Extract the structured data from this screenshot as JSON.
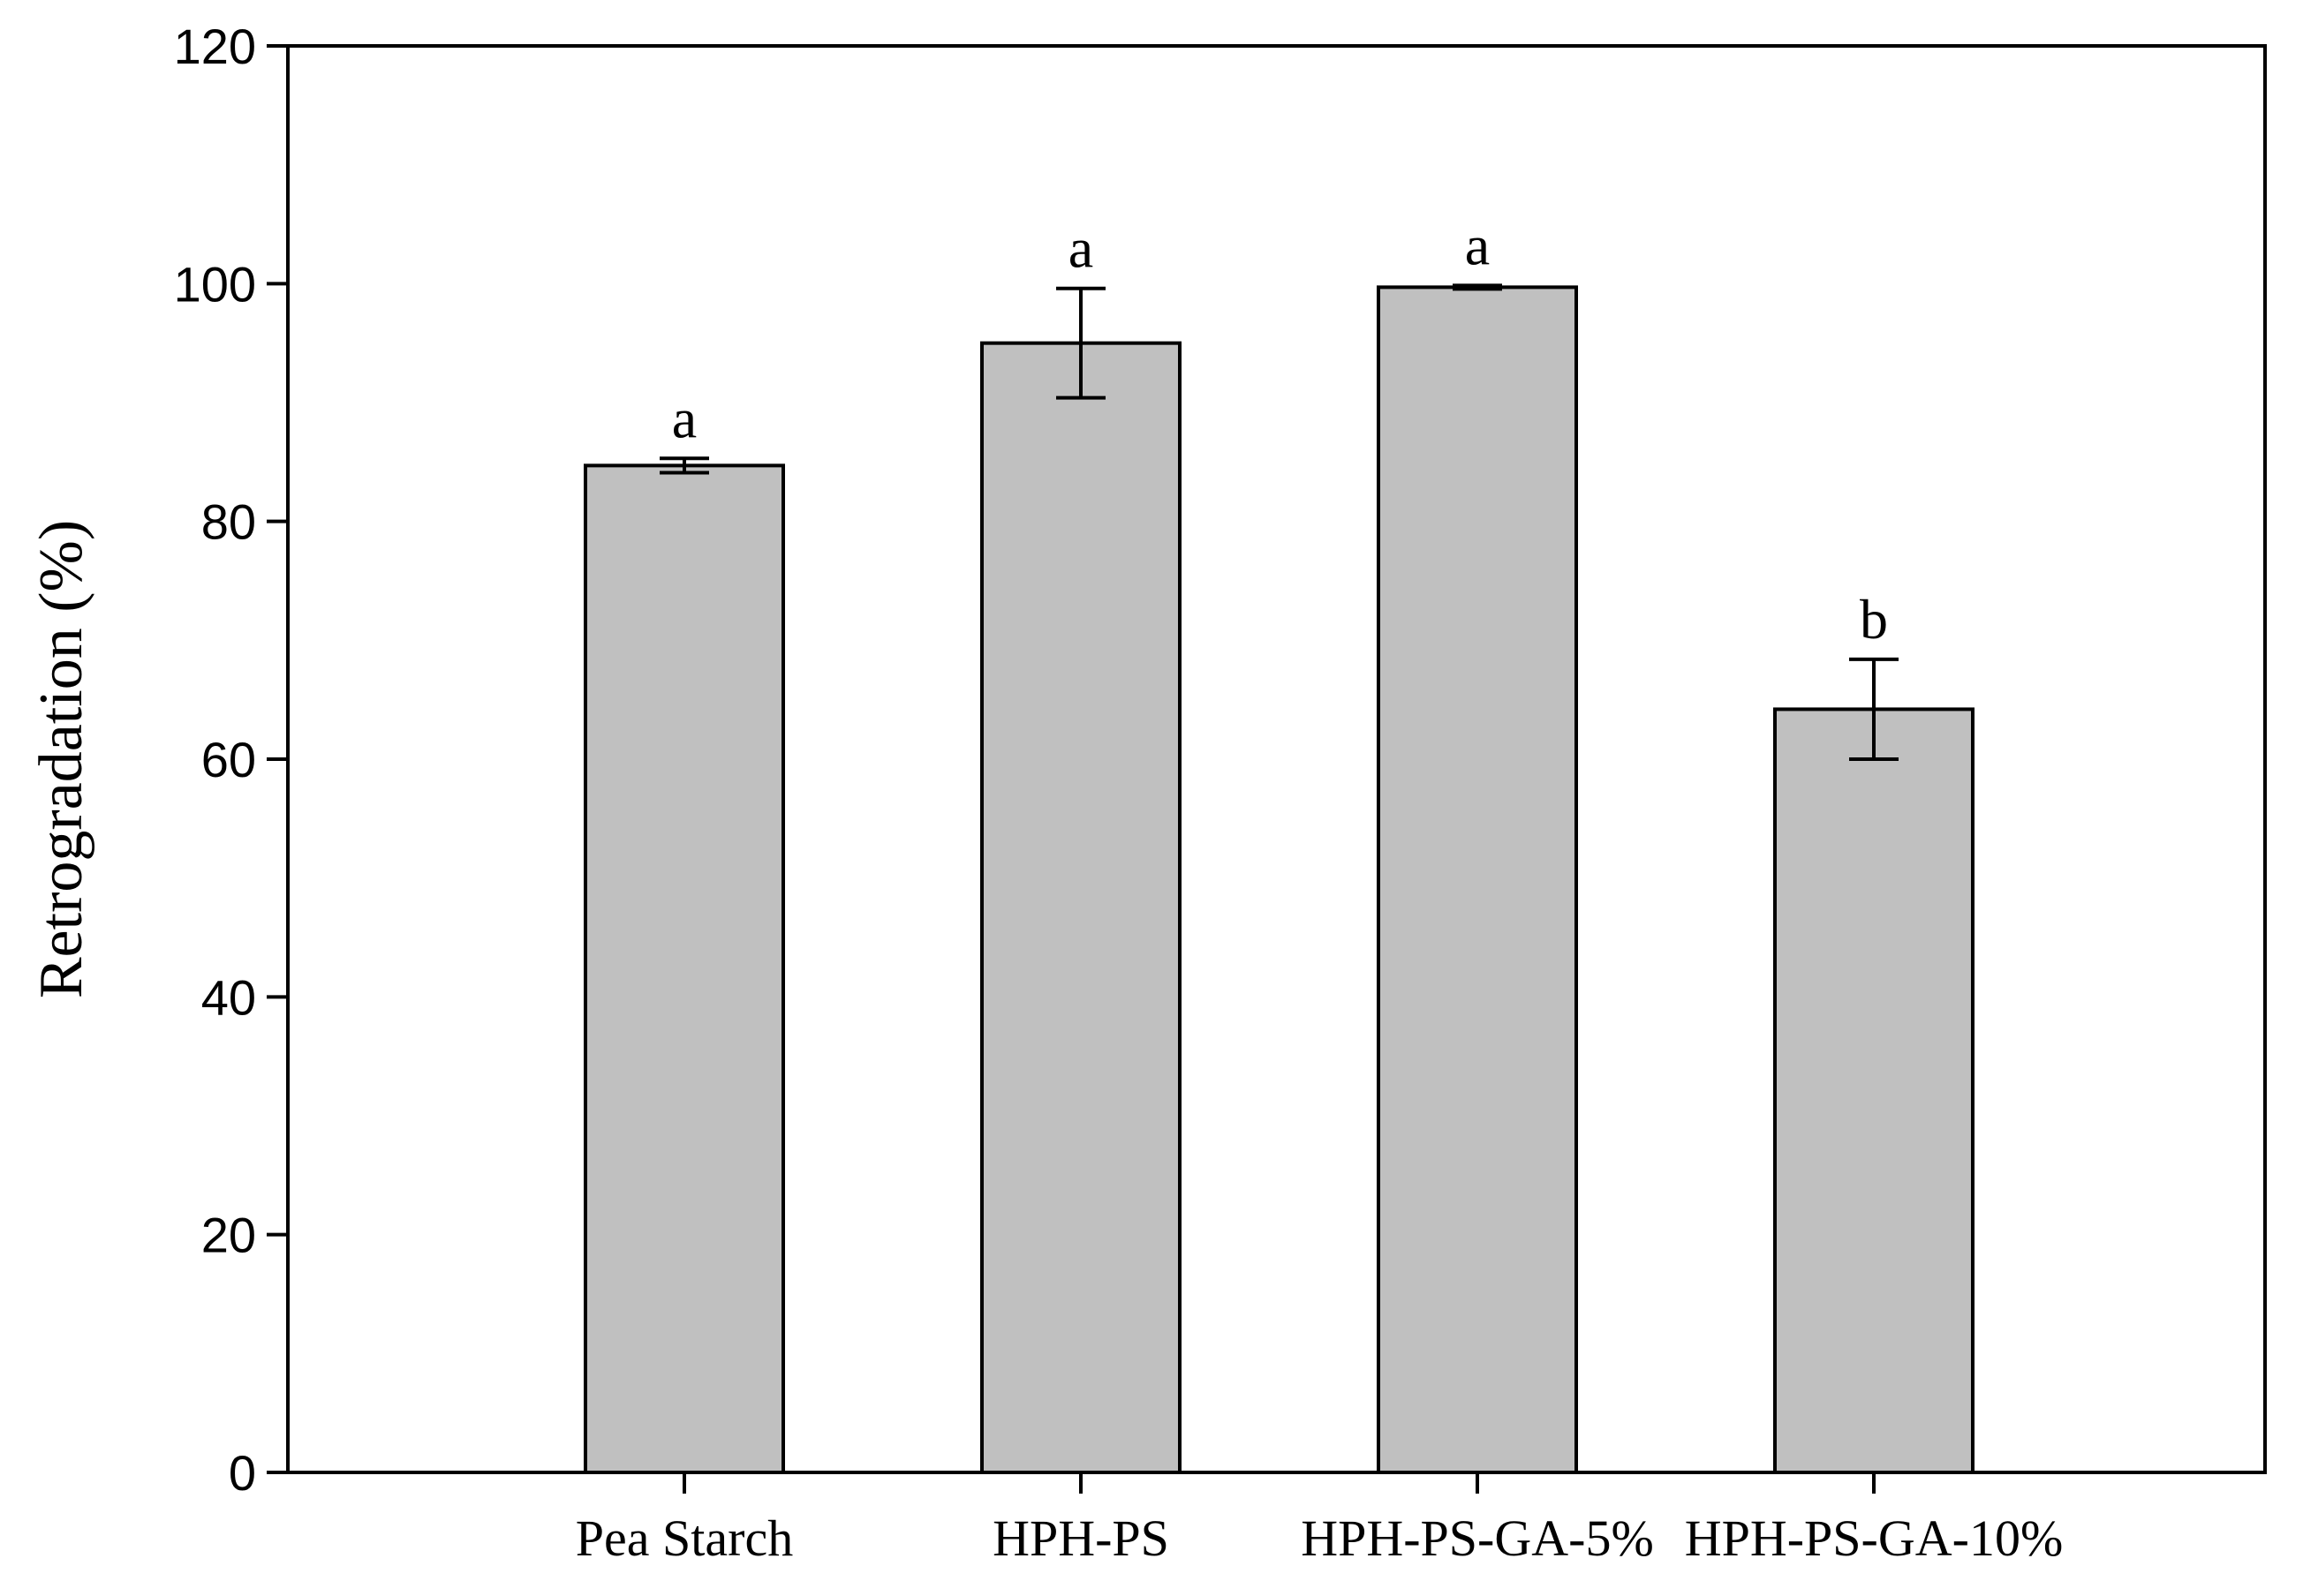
{
  "chart_data": {
    "type": "bar",
    "title": "",
    "xlabel": "",
    "ylabel": "Retrogradation (%)",
    "ylim": [
      0,
      120
    ],
    "yticks": [
      0,
      20,
      40,
      60,
      80,
      100,
      120
    ],
    "categories": [
      "Pea Starch",
      "HPH-PS",
      "HPH-PS-GA-5%",
      "HPH-PS-GA-10%"
    ],
    "values": [
      84.7,
      95.0,
      99.7,
      64.2
    ],
    "errors": [
      0.6,
      4.6,
      0.15,
      4.2
    ],
    "significance": [
      "a",
      "a",
      "a",
      "b"
    ],
    "bar_color": "#c0c0c0",
    "grid": false,
    "legend": "none"
  }
}
